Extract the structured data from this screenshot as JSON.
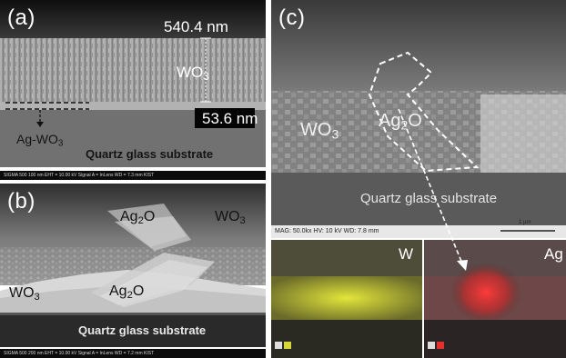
{
  "panel_a": {
    "label": "(a)",
    "thickness_top": "540.4 nm",
    "thickness_bottom": "53.6 nm",
    "film_main": "WO",
    "film_sub": "3",
    "doped_main": "Ag-WO",
    "doped_sub": "3",
    "substrate": "Quartz glass substrate",
    "footer": "SIGMA 500   100 nm    EHT = 10.00 kV    Signal A = InLens    WD = 7.3 mm    KIST"
  },
  "panel_b": {
    "label": "(b)",
    "ag2o_top_main": "Ag",
    "ag2o_top_sub": "2",
    "ag2o_top_tail": "O",
    "wo3_right_main": "WO",
    "wo3_right_sub": "3",
    "wo3_left_main": "WO",
    "wo3_left_sub": "3",
    "ag2o_mid_main": "Ag",
    "ag2o_mid_sub": "2",
    "ag2o_mid_tail": "O",
    "substrate": "Quartz glass substrate",
    "footer": "SIGMA 500   200 nm    EHT = 10.00 kV    Signal A = InLens    WD = 7.2 mm    KIST"
  },
  "panel_c": {
    "label": "(c)",
    "wo3_main": "WO",
    "wo3_sub": "3",
    "ag2o_main": "Ag",
    "ag2o_sub": "2",
    "ag2o_tail": "O",
    "substrate": "Quartz glass substrate",
    "scale": "1 μm",
    "info": "MAG: 50.0kx   HV: 10 kV   WD: 7.8 mm",
    "map_w": "W",
    "map_ag": "Ag"
  },
  "colors": {
    "sem_gray": "#6f6f6f",
    "w_map": "#c8cc2a",
    "ag_map": "#e83030"
  }
}
